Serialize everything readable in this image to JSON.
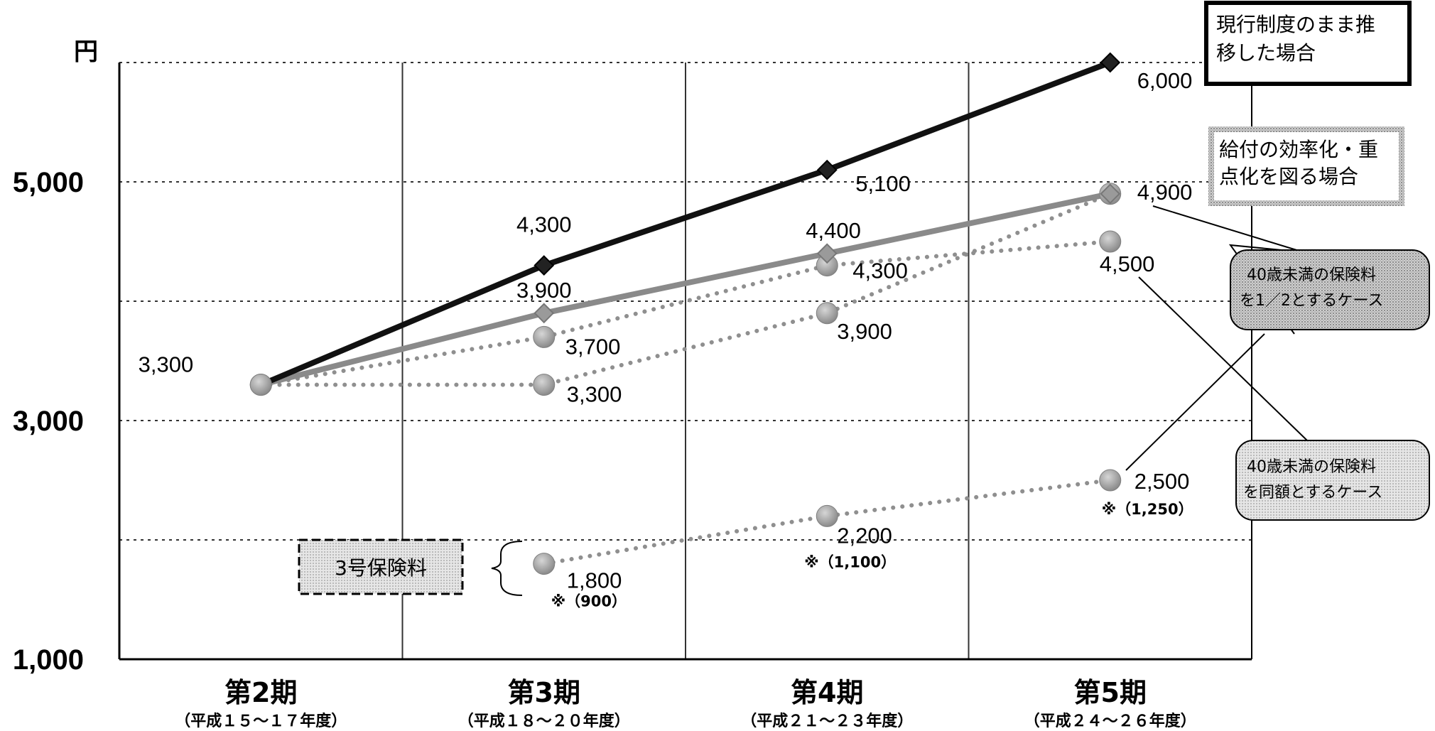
{
  "chart_data": {
    "type": "line",
    "yunit": "円",
    "ylim": [
      1000,
      6000
    ],
    "yticks": [
      "1,000",
      "3,000",
      "5,000"
    ],
    "grid": true,
    "categories": [
      {
        "main": "第2期",
        "sub": "（平成１５～１７年度）"
      },
      {
        "main": "第3期",
        "sub": "（平成１８～２０年度）"
      },
      {
        "main": "第4期",
        "sub": "（平成２１～２３年度）"
      },
      {
        "main": "第5期",
        "sub": "（平成２４～２６年度）"
      }
    ],
    "series": [
      {
        "name": "現行制度のまま推移した場合",
        "style": "solid-dark",
        "marker": "diamond",
        "color": "#1a1a1a",
        "values": [
          3300,
          4300,
          5100,
          6000
        ],
        "labels": [
          "3,300",
          "4,300",
          "5,100",
          "6,000"
        ]
      },
      {
        "name": "給付の効率化・重点化を図る場合",
        "style": "solid-gray",
        "marker": "diamond",
        "color": "#8c8c8c",
        "values": [
          3300,
          3900,
          4400,
          4900
        ],
        "labels": [
          "",
          "3,900",
          "4,400",
          "4,900"
        ]
      },
      {
        "name": "40歳未満の保険料を同額とするケース",
        "style": "dotted",
        "marker": "circle",
        "color": "#8c8c8c",
        "values": [
          3300,
          3700,
          4300,
          4500
        ],
        "labels": [
          "",
          "3,700",
          "4,300",
          "4,500"
        ]
      },
      {
        "name": "40歳未満の保険料を1／2とするケース",
        "style": "dotted",
        "marker": "circle",
        "color": "#8c8c8c",
        "values": [
          3300,
          3300,
          3900,
          4900
        ],
        "labels": [
          "",
          "3,300",
          "3,900",
          ""
        ]
      },
      {
        "name": "3号保険料",
        "style": "dotted",
        "marker": "circle",
        "color": "#8c8c8c",
        "values": [
          null,
          1800,
          2200,
          2500
        ],
        "labels": [
          "",
          "1,800",
          "2,200",
          "2,500"
        ],
        "notes": [
          "",
          "※（900）",
          "※（1,100）",
          "※（1,250）"
        ]
      }
    ],
    "legend": {
      "current": [
        "現行制度のまま推",
        "移した場合"
      ],
      "efficient": [
        "給付の効率化・重",
        "点化を図る場合"
      ],
      "half": [
        "40歳未満の保険料",
        "を1／2とするケース"
      ],
      "same": [
        "40歳未満の保険料",
        "を同額とするケース"
      ],
      "no3": "3号保険料"
    }
  }
}
